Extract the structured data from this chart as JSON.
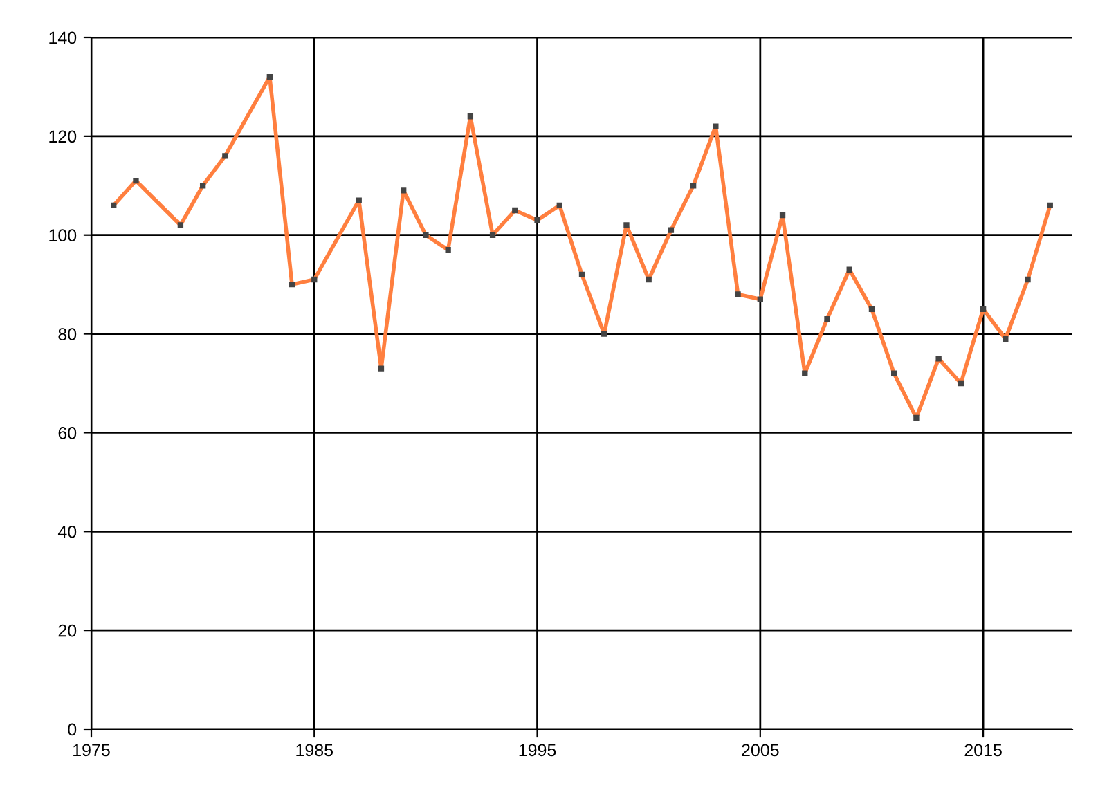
{
  "chart_data": {
    "type": "line",
    "x": [
      1976,
      1977,
      1979,
      1980,
      1981,
      1983,
      1984,
      1985,
      1987,
      1988,
      1989,
      1990,
      1991,
      1992,
      1993,
      1994,
      1995,
      1996,
      1997,
      1998,
      1999,
      2000,
      2001,
      2002,
      2003,
      2004,
      2005,
      2006,
      2007,
      2008,
      2009,
      2010,
      2011,
      2012,
      2013,
      2014,
      2015,
      2016,
      2017,
      2018
    ],
    "series": [
      {
        "color": "#ff7f3f",
        "values": [
          106,
          111,
          102,
          110,
          116,
          132,
          90,
          91,
          107,
          73,
          109,
          100,
          97,
          124,
          100,
          105,
          103,
          106,
          92,
          80,
          102,
          91,
          101,
          110,
          122,
          88,
          87,
          104,
          72,
          83,
          93,
          85,
          72,
          63,
          75,
          70,
          85,
          79,
          91,
          106
        ]
      }
    ],
    "xlim": [
      1975,
      2019
    ],
    "xticks": [
      1975,
      1985,
      1995,
      2005,
      2015
    ],
    "ylim": [
      0,
      140
    ],
    "yticks": [
      0,
      20,
      40,
      60,
      80,
      100,
      120,
      140
    ],
    "grid": true,
    "marker": "square",
    "line_style": "solid"
  }
}
